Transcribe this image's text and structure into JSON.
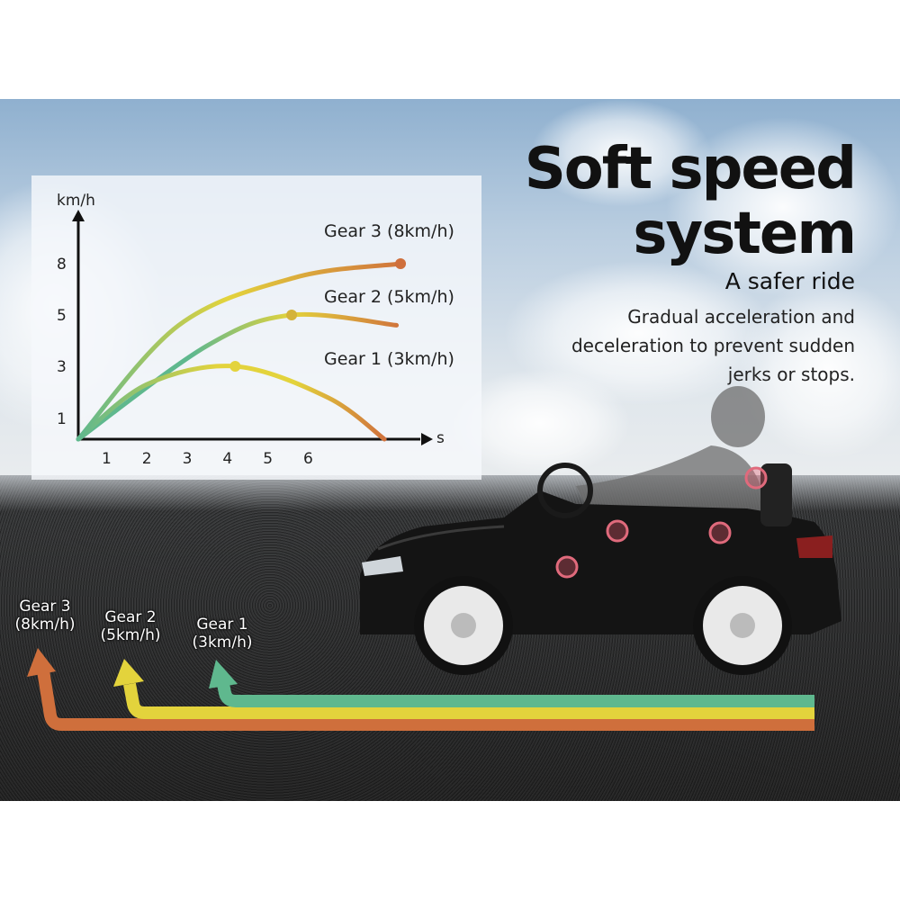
{
  "headline": {
    "line1": "Soft speed",
    "line2": "system"
  },
  "subheadline": "A safer ride",
  "description": "Gradual acceleration and deceleration to prevent sudden jerks or stops.",
  "colors": {
    "gear1": "#5fb88e",
    "gear2": "#e3d33c",
    "gear3": "#cf6f3c"
  },
  "chart_data": {
    "type": "line",
    "ylabel": "km/h",
    "xlabel": "s",
    "x_ticks": [
      "1",
      "2",
      "3",
      "4",
      "5",
      "6"
    ],
    "y_ticks": [
      "1",
      "3",
      "5",
      "8"
    ],
    "grid": false,
    "series": [
      {
        "name": "Gear 3 (8km/h)",
        "points": [
          [
            0,
            0
          ],
          [
            2.8,
            4.6
          ],
          [
            5.7,
            7.2
          ],
          [
            8.3,
            8
          ]
        ],
        "marker": [
          8.3,
          8
        ]
      },
      {
        "name": "Gear 2 (5km/h)",
        "points": [
          [
            0,
            0
          ],
          [
            3.5,
            3.8
          ],
          [
            5.6,
            5
          ],
          [
            8.2,
            4.6
          ]
        ],
        "marker": [
          5.6,
          5
        ]
      },
      {
        "name": "Gear 1  (3km/h)",
        "points": [
          [
            0,
            0
          ],
          [
            2.0,
            2.3
          ],
          [
            4.2,
            3
          ],
          [
            6.5,
            1.8
          ],
          [
            7.9,
            0
          ]
        ],
        "marker": [
          4.2,
          3
        ]
      }
    ]
  },
  "gear_arrows": [
    {
      "label1": "Gear 3",
      "label2": "(8km/h)"
    },
    {
      "label1": "Gear 2",
      "label2": "(5km/h)"
    },
    {
      "label1": "Gear 1",
      "label2": "(3km/h)"
    }
  ]
}
